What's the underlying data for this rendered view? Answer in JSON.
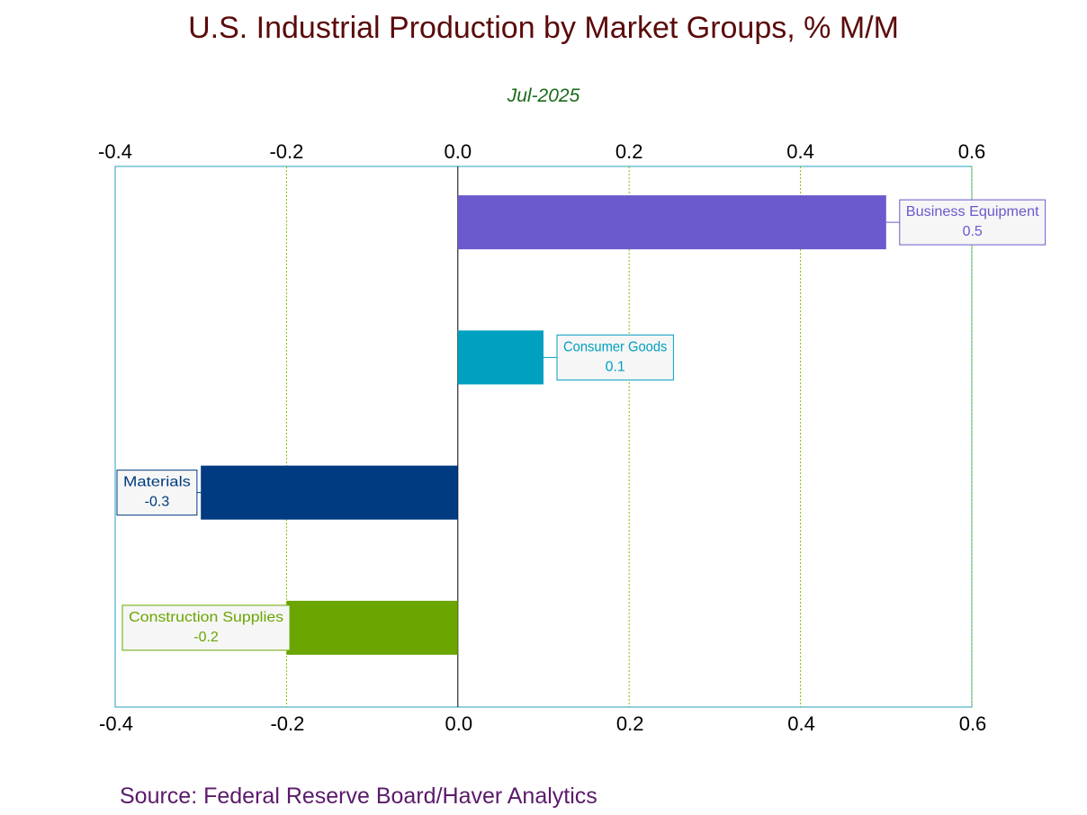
{
  "title": "U.S. Industrial Production by Market Groups, % M/M",
  "source": "Source:  Federal Reserve Board/Haver Analytics",
  "chart_data": {
    "type": "bar",
    "orientation": "horizontal",
    "subtitle": "Jul-2025",
    "xlim": [
      -0.4,
      0.6
    ],
    "ticks": [
      "-0.4",
      "-0.2",
      "0.0",
      "0.2",
      "0.4",
      "0.6"
    ],
    "tick_values": [
      -0.4,
      -0.2,
      0.0,
      0.2,
      0.4,
      0.6
    ],
    "grid": true,
    "categories": [
      "Business Equipment",
      "Consumer Goods",
      "Materials",
      "Construction Supplies"
    ],
    "values": [
      0.5,
      0.1,
      -0.3,
      -0.2
    ],
    "value_labels": [
      "0.5",
      "0.1",
      "-0.3",
      "-0.2"
    ],
    "colors": [
      "#6a5acd",
      "#00a0c0",
      "#003a80",
      "#6aa500"
    ]
  }
}
